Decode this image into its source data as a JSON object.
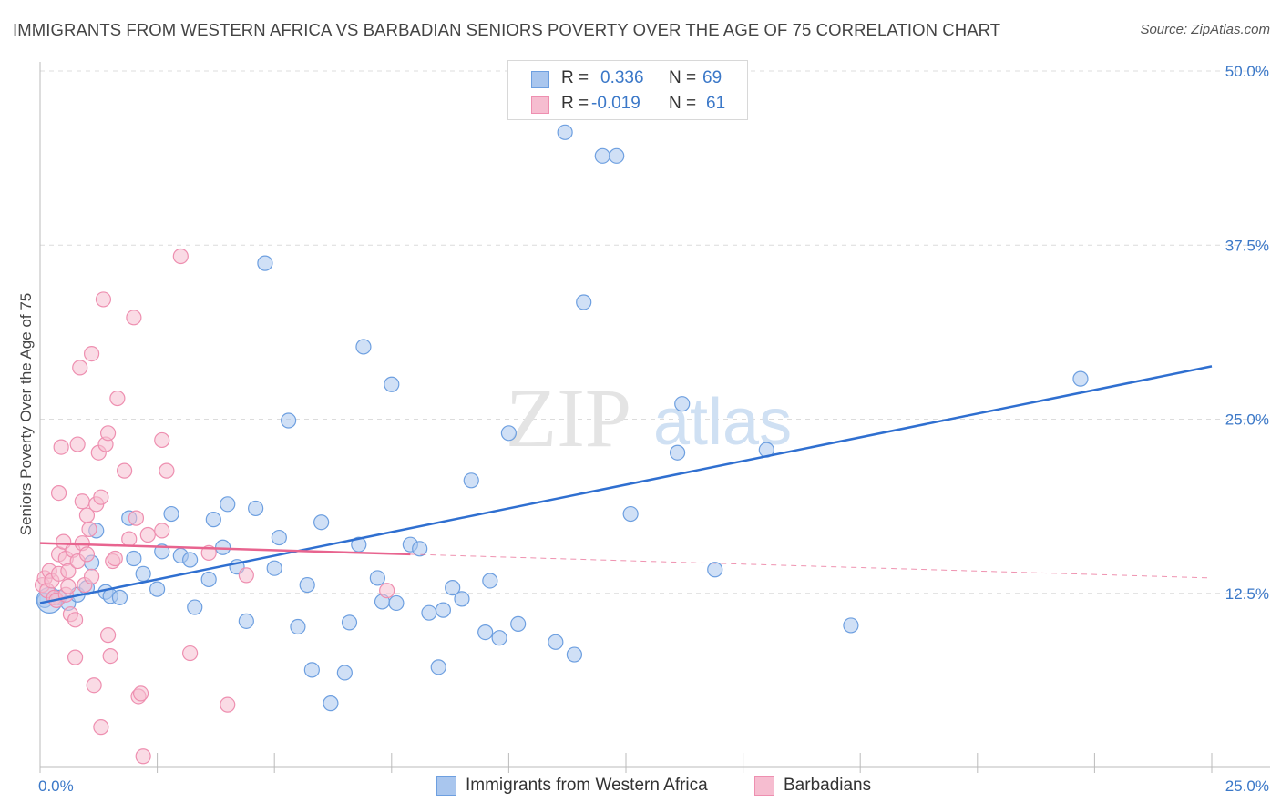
{
  "header": {
    "title": "IMMIGRANTS FROM WESTERN AFRICA VS BARBADIAN SENIORS POVERTY OVER THE AGE OF 75 CORRELATION CHART",
    "source": "Source: ZipAtlas.com"
  },
  "watermark": {
    "zip": "ZIP",
    "atlas": "atlas"
  },
  "legend": {
    "rows": [
      {
        "r_label": "R =",
        "r_value": "0.336",
        "n_label": "N =",
        "n_value": "69"
      },
      {
        "r_label": "R =",
        "r_value": "-0.019",
        "n_label": "N =",
        "n_value": "61"
      }
    ]
  },
  "bottom_legend": {
    "series1": "Immigrants from Western Africa",
    "series2": "Barbadians"
  },
  "colors": {
    "blue_fill": "#a9c6ee",
    "blue_stroke": "#6d9fe0",
    "blue_line": "#2f6fd0",
    "pink_fill": "#f6bdd0",
    "pink_stroke": "#ee8fb0",
    "pink_line": "#e8648f",
    "tick_text": "#3b78c8",
    "grid": "#dcdcdc"
  },
  "chart_data": {
    "type": "scatter",
    "title": "IMMIGRANTS FROM WESTERN AFRICA VS BARBADIAN SENIORS POVERTY OVER THE AGE OF 75 CORRELATION CHART",
    "xlabel": "",
    "ylabel": "Seniors Poverty Over the Age of 75",
    "xlim": [
      0,
      25
    ],
    "ylim": [
      0,
      50
    ],
    "x_tick_labels": [
      "0.0%",
      "25.0%"
    ],
    "y_ticks": [
      12.5,
      25.0,
      37.5,
      50.0
    ],
    "y_tick_labels": [
      "12.5%",
      "25.0%",
      "37.5%",
      "50.0%"
    ],
    "series": [
      {
        "name": "Immigrants from Western Africa",
        "color": "#6d9fe0",
        "R": 0.336,
        "N": 69,
        "trend": {
          "x": [
            0.0,
            25.0
          ],
          "y": [
            11.8,
            28.8
          ],
          "style": "solid"
        },
        "points": [
          [
            0.1,
            12.0
          ],
          [
            0.4,
            12.2
          ],
          [
            0.6,
            11.8
          ],
          [
            0.8,
            12.4
          ],
          [
            1.0,
            12.9
          ],
          [
            1.1,
            14.7
          ],
          [
            1.2,
            17.0
          ],
          [
            1.4,
            12.6
          ],
          [
            1.5,
            12.3
          ],
          [
            1.7,
            12.2
          ],
          [
            1.9,
            17.9
          ],
          [
            2.0,
            15.0
          ],
          [
            2.2,
            13.9
          ],
          [
            2.5,
            12.8
          ],
          [
            2.6,
            15.5
          ],
          [
            2.8,
            18.2
          ],
          [
            3.0,
            15.2
          ],
          [
            3.2,
            14.9
          ],
          [
            3.3,
            11.5
          ],
          [
            3.6,
            13.5
          ],
          [
            3.7,
            17.8
          ],
          [
            3.9,
            15.8
          ],
          [
            4.0,
            18.9
          ],
          [
            4.2,
            14.4
          ],
          [
            4.4,
            10.5
          ],
          [
            4.6,
            18.6
          ],
          [
            4.8,
            36.2
          ],
          [
            5.0,
            14.3
          ],
          [
            5.1,
            16.5
          ],
          [
            5.3,
            24.9
          ],
          [
            5.5,
            10.1
          ],
          [
            5.7,
            13.1
          ],
          [
            5.8,
            7.0
          ],
          [
            6.0,
            17.6
          ],
          [
            6.2,
            4.6
          ],
          [
            6.5,
            6.8
          ],
          [
            6.6,
            10.4
          ],
          [
            6.8,
            16.0
          ],
          [
            6.9,
            30.2
          ],
          [
            7.2,
            13.6
          ],
          [
            7.3,
            11.9
          ],
          [
            7.5,
            27.5
          ],
          [
            7.6,
            11.8
          ],
          [
            7.9,
            16.0
          ],
          [
            8.1,
            15.7
          ],
          [
            8.3,
            11.1
          ],
          [
            8.5,
            7.2
          ],
          [
            8.6,
            11.3
          ],
          [
            8.8,
            12.9
          ],
          [
            9.0,
            12.1
          ],
          [
            9.2,
            20.6
          ],
          [
            9.5,
            9.7
          ],
          [
            9.6,
            13.4
          ],
          [
            9.8,
            9.3
          ],
          [
            10.0,
            24.0
          ],
          [
            10.2,
            10.3
          ],
          [
            11.0,
            9.0
          ],
          [
            11.4,
            8.1
          ],
          [
            11.2,
            45.6
          ],
          [
            11.6,
            33.4
          ],
          [
            12.0,
            43.9
          ],
          [
            12.3,
            43.9
          ],
          [
            12.6,
            18.2
          ],
          [
            13.6,
            22.6
          ],
          [
            13.7,
            26.1
          ],
          [
            14.4,
            14.2
          ],
          [
            15.5,
            22.8
          ],
          [
            17.3,
            10.2
          ],
          [
            22.2,
            27.9
          ]
        ]
      },
      {
        "name": "Barbadians",
        "color": "#ee8fb0",
        "R": -0.019,
        "N": 61,
        "trend": {
          "x": [
            0.0,
            7.9
          ],
          "y": [
            16.1,
            15.3
          ],
          "style": "solid",
          "extension": {
            "x": [
              7.9,
              25.0
            ],
            "y": [
              15.3,
              13.6
            ],
            "style": "dashed"
          }
        },
        "points": [
          [
            0.05,
            13.1
          ],
          [
            0.1,
            13.6
          ],
          [
            0.15,
            12.7
          ],
          [
            0.2,
            14.1
          ],
          [
            0.25,
            13.4
          ],
          [
            0.3,
            12.2
          ],
          [
            0.35,
            12.0
          ],
          [
            0.4,
            13.9
          ],
          [
            0.4,
            15.3
          ],
          [
            0.4,
            19.7
          ],
          [
            0.45,
            23.0
          ],
          [
            0.5,
            16.2
          ],
          [
            0.55,
            15.0
          ],
          [
            0.55,
            12.4
          ],
          [
            0.6,
            14.1
          ],
          [
            0.6,
            13.0
          ],
          [
            0.65,
            11.0
          ],
          [
            0.7,
            15.6
          ],
          [
            0.75,
            10.6
          ],
          [
            0.75,
            7.9
          ],
          [
            0.8,
            14.8
          ],
          [
            0.8,
            23.2
          ],
          [
            0.85,
            28.7
          ],
          [
            0.9,
            16.1
          ],
          [
            0.9,
            19.1
          ],
          [
            0.95,
            13.1
          ],
          [
            1.0,
            18.1
          ],
          [
            1.0,
            15.3
          ],
          [
            1.05,
            17.1
          ],
          [
            1.1,
            29.7
          ],
          [
            1.1,
            13.7
          ],
          [
            1.15,
            5.9
          ],
          [
            1.2,
            18.9
          ],
          [
            1.25,
            22.6
          ],
          [
            1.3,
            19.4
          ],
          [
            1.3,
            2.9
          ],
          [
            1.35,
            33.6
          ],
          [
            1.4,
            23.2
          ],
          [
            1.45,
            24.0
          ],
          [
            1.45,
            9.5
          ],
          [
            1.5,
            8.0
          ],
          [
            1.55,
            14.8
          ],
          [
            1.6,
            15.0
          ],
          [
            1.65,
            26.5
          ],
          [
            1.8,
            21.3
          ],
          [
            1.9,
            16.4
          ],
          [
            2.0,
            32.3
          ],
          [
            2.05,
            17.9
          ],
          [
            2.1,
            5.1
          ],
          [
            2.15,
            5.3
          ],
          [
            2.2,
            0.8
          ],
          [
            2.3,
            16.7
          ],
          [
            2.6,
            23.5
          ],
          [
            2.6,
            17.0
          ],
          [
            2.7,
            21.3
          ],
          [
            3.0,
            36.7
          ],
          [
            3.2,
            8.2
          ],
          [
            3.6,
            15.4
          ],
          [
            4.0,
            4.5
          ],
          [
            4.4,
            13.8
          ],
          [
            7.4,
            12.7
          ]
        ]
      }
    ]
  }
}
